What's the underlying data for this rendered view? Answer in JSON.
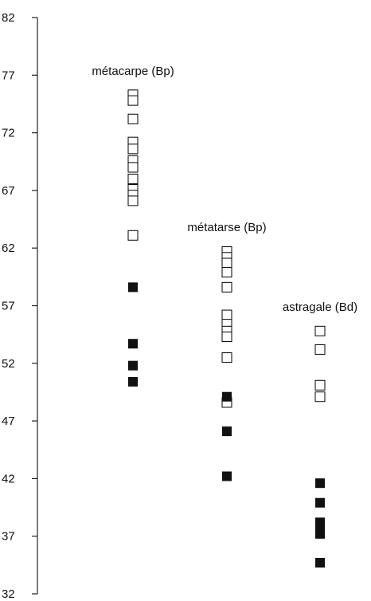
{
  "chart_data": {
    "type": "scatter",
    "title": "",
    "xlabel": "",
    "ylabel": "",
    "ylim": [
      32,
      82
    ],
    "yticks": [
      82,
      77,
      72,
      67,
      62,
      57,
      52,
      47,
      42,
      37,
      32
    ],
    "grid": false,
    "groups": [
      {
        "label": "métacarpe (Bp)",
        "open": [
          75.3,
          74.8,
          73.2,
          71.2,
          70.6,
          69.6,
          69.0,
          68.0,
          67.1,
          66.6,
          66.1,
          63.1
        ],
        "filled": [
          58.6,
          53.7,
          51.8,
          50.4
        ]
      },
      {
        "label": "métatarse (Bp)",
        "open": [
          61.7,
          61.2,
          60.7,
          59.9,
          58.6,
          56.2,
          55.4,
          54.8,
          54.3,
          52.5,
          48.6
        ],
        "filled": [
          49.1,
          46.1,
          42.2
        ]
      },
      {
        "label": "astragale (Bd)",
        "open": [
          54.8,
          53.2,
          50.1,
          49.1
        ],
        "filled": [
          41.6,
          39.9,
          38.2,
          37.8,
          37.2,
          34.7
        ]
      }
    ],
    "colors": {
      "open_stroke": "#000000",
      "open_fill": "#ffffff",
      "filled": "#111111",
      "axis": "#222222"
    }
  }
}
